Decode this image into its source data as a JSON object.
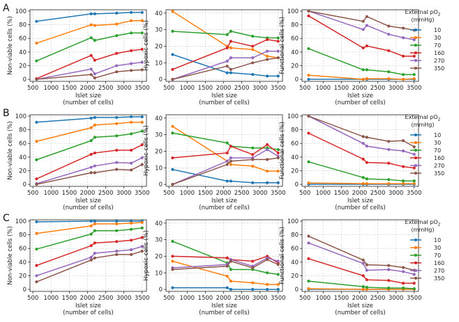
{
  "legend": {
    "title_line1": "External pO",
    "title_sub": "2",
    "title_line2": "(mmHg)",
    "entries": [
      "10",
      "30",
      "70",
      "160",
      "270",
      "350"
    ]
  },
  "colors": {
    "10": "#1f77b4",
    "30": "#ff7f0e",
    "70": "#2ca02c",
    "160": "#d62728",
    "270": "#9467bd",
    "350": "#8c564b"
  },
  "axes_common": {
    "xlabel_line1": "Islet size",
    "xlabel_line2": "(number of cells)",
    "xticks": [
      500,
      1000,
      1500,
      2000,
      2500,
      3000,
      3500
    ],
    "xlim": [
      420,
      3620
    ]
  },
  "rows": [
    {
      "letter": "A"
    },
    {
      "letter": "B"
    },
    {
      "letter": "C"
    }
  ],
  "chart_data": [
    {
      "panel": "A-nonviable",
      "type": "line",
      "ylabel": "Non-viable cells (%)",
      "ylim": [
        -3,
        102
      ],
      "yticks": [
        0,
        20,
        40,
        60,
        80,
        100
      ],
      "x": [
        600,
        2100,
        2200,
        2800,
        3200,
        3500
      ],
      "series": [
        {
          "name": "10",
          "values": [
            85,
            96,
            96,
            97,
            98,
            98
          ]
        },
        {
          "name": "30",
          "values": [
            53,
            80,
            79,
            81,
            86,
            86
          ]
        },
        {
          "name": "70",
          "values": [
            27,
            61,
            57,
            64,
            68,
            68
          ]
        },
        {
          "name": "160",
          "values": [
            1,
            35,
            28,
            38,
            42,
            44
          ]
        },
        {
          "name": "270",
          "values": [
            0,
            15,
            8,
            20,
            23,
            25
          ]
        },
        {
          "name": "350",
          "values": [
            0,
            7,
            2,
            11,
            13,
            14
          ]
        }
      ]
    },
    {
      "panel": "A-hypoxic",
      "type": "line",
      "ylabel": "Hypoxic cells (%)",
      "ylim": [
        -1.2,
        42
      ],
      "yticks": [
        0,
        10,
        20,
        30,
        40
      ],
      "x": [
        600,
        2100,
        2200,
        2800,
        3200,
        3500
      ],
      "series": [
        {
          "name": "10",
          "values": [
            15,
            4,
            4,
            3,
            2,
            2
          ]
        },
        {
          "name": "30",
          "values": [
            41,
            20,
            19,
            18,
            14,
            13
          ]
        },
        {
          "name": "70",
          "values": [
            29,
            27,
            29,
            26,
            25,
            25
          ]
        },
        {
          "name": "160",
          "values": [
            6,
            19,
            23,
            20,
            24,
            23
          ]
        },
        {
          "name": "270",
          "values": [
            0,
            11,
            13,
            13,
            17,
            17
          ]
        },
        {
          "name": "350",
          "values": [
            0,
            8,
            6,
            10,
            12,
            13
          ]
        }
      ]
    },
    {
      "panel": "A-functional",
      "type": "line",
      "ylabel": "Functional cells (%)",
      "ylim": [
        -3,
        102
      ],
      "yticks": [
        0,
        20,
        40,
        60,
        80,
        100
      ],
      "x": [
        600,
        2100,
        2200,
        2800,
        3200,
        3500
      ],
      "series": [
        {
          "name": "10",
          "values": [
            0,
            0,
            0,
            0,
            0,
            0
          ]
        },
        {
          "name": "30",
          "values": [
            6,
            0,
            1,
            1,
            0,
            1
          ]
        },
        {
          "name": "70",
          "values": [
            45,
            14,
            14,
            11,
            7,
            7
          ]
        },
        {
          "name": "160",
          "values": [
            93,
            46,
            49,
            42,
            34,
            34
          ]
        },
        {
          "name": "270",
          "values": [
            100,
            73,
            79,
            66,
            61,
            58
          ]
        },
        {
          "name": "350",
          "values": [
            100,
            85,
            92,
            78,
            75,
            72
          ]
        }
      ]
    },
    {
      "panel": "B-nonviable",
      "type": "line",
      "ylabel": "Non-viable cells (%)",
      "ylim": [
        -3,
        102
      ],
      "yticks": [
        0,
        20,
        40,
        60,
        80,
        100
      ],
      "x": [
        600,
        2100,
        2200,
        2800,
        3200,
        3500
      ],
      "series": [
        {
          "name": "10",
          "values": [
            91,
            97,
            98,
            98,
            99,
            99
          ]
        },
        {
          "name": "30",
          "values": [
            63,
            83,
            87,
            89,
            91,
            91
          ]
        },
        {
          "name": "70",
          "values": [
            36,
            64,
            69,
            71,
            74,
            78
          ]
        },
        {
          "name": "160",
          "values": [
            8,
            44,
            46,
            50,
            50,
            58
          ]
        },
        {
          "name": "270",
          "values": [
            1,
            25,
            27,
            32,
            31,
            39
          ]
        },
        {
          "name": "350",
          "values": [
            0,
            17,
            17,
            22,
            21,
            29
          ]
        }
      ]
    },
    {
      "panel": "B-hypoxic",
      "type": "line",
      "ylabel": "Hypoxic cells (%)",
      "ylim": [
        -1.2,
        42
      ],
      "yticks": [
        0,
        10,
        20,
        30,
        40
      ],
      "x": [
        600,
        2100,
        2200,
        2800,
        3200,
        3500
      ],
      "series": [
        {
          "name": "10",
          "values": [
            9,
            2,
            2,
            1,
            1,
            1
          ]
        },
        {
          "name": "30",
          "values": [
            35,
            14,
            12,
            11,
            8,
            8
          ]
        },
        {
          "name": "70",
          "values": [
            31,
            25,
            23,
            22,
            22,
            21
          ]
        },
        {
          "name": "160",
          "values": [
            16,
            19,
            23,
            18,
            24,
            19
          ]
        },
        {
          "name": "270",
          "values": [
            0,
            14,
            16,
            16,
            21,
            17
          ]
        },
        {
          "name": "350",
          "values": [
            0,
            12,
            14,
            15,
            15,
            16
          ]
        }
      ]
    },
    {
      "panel": "B-functional",
      "type": "line",
      "ylabel": "Functional cells (%)",
      "ylim": [
        -3,
        102
      ],
      "yticks": [
        0,
        20,
        40,
        60,
        80,
        100
      ],
      "x": [
        600,
        2100,
        2200,
        2800,
        3200,
        3500
      ],
      "series": [
        {
          "name": "10",
          "values": [
            0,
            0,
            0,
            0,
            0,
            0
          ]
        },
        {
          "name": "30",
          "values": [
            2,
            1,
            1,
            1,
            1,
            1
          ]
        },
        {
          "name": "70",
          "values": [
            33,
            10,
            8,
            7,
            5,
            5
          ]
        },
        {
          "name": "160",
          "values": [
            75,
            37,
            32,
            31,
            26,
            24
          ]
        },
        {
          "name": "270",
          "values": [
            100,
            60,
            56,
            51,
            49,
            44
          ]
        },
        {
          "name": "350",
          "values": [
            100,
            70,
            69,
            63,
            64,
            55
          ]
        }
      ]
    },
    {
      "panel": "C-nonviable",
      "type": "line",
      "ylabel": "Non-viable cells (%)",
      "ylim": [
        -3,
        102
      ],
      "yticks": [
        0,
        20,
        40,
        60,
        80,
        100
      ],
      "x": [
        600,
        2100,
        2200,
        2800,
        3200,
        3500
      ],
      "series": [
        {
          "name": "10",
          "values": [
            99,
            100,
            100,
            100,
            100,
            100
          ]
        },
        {
          "name": "30",
          "values": [
            82,
            93,
            96,
            96,
            97,
            98
          ]
        },
        {
          "name": "70",
          "values": [
            59,
            81,
            86,
            86,
            88,
            90
          ]
        },
        {
          "name": "160",
          "values": [
            35,
            64,
            68,
            70,
            72,
            76
          ]
        },
        {
          "name": "270",
          "values": [
            20,
            47,
            53,
            56,
            58,
            63
          ]
        },
        {
          "name": "350",
          "values": [
            11,
            43,
            46,
            51,
            51,
            56
          ]
        }
      ]
    },
    {
      "panel": "C-hypoxic",
      "type": "line",
      "ylabel": "Hypoxic cells (%)",
      "ylim": [
        -1.2,
        42
      ],
      "yticks": [
        0,
        10,
        20,
        30,
        40
      ],
      "x": [
        600,
        2100,
        2200,
        2800,
        3200,
        3500
      ],
      "series": [
        {
          "name": "10",
          "values": [
            1,
            1,
            0,
            0,
            0,
            0
          ]
        },
        {
          "name": "30",
          "values": [
            17,
            8,
            5,
            4,
            3,
            3
          ]
        },
        {
          "name": "70",
          "values": [
            29,
            16,
            12,
            12,
            10,
            9
          ]
        },
        {
          "name": "160",
          "values": [
            20,
            19,
            18,
            17,
            20,
            16
          ]
        },
        {
          "name": "270",
          "values": [
            13,
            15,
            18,
            14,
            19,
            17
          ]
        },
        {
          "name": "350",
          "values": [
            12,
            14,
            17,
            13,
            18,
            15
          ]
        }
      ]
    },
    {
      "panel": "C-functional",
      "type": "line",
      "ylabel": "Functional cells (%)",
      "ylim": [
        -3,
        102
      ],
      "yticks": [
        0,
        20,
        40,
        60,
        80,
        100
      ],
      "x": [
        600,
        2100,
        2200,
        2800,
        3200,
        3500
      ],
      "series": [
        {
          "name": "10",
          "values": [
            0,
            0,
            0,
            0,
            0,
            0
          ]
        },
        {
          "name": "30",
          "values": [
            1,
            0,
            0,
            0,
            0,
            0
          ]
        },
        {
          "name": "70",
          "values": [
            12,
            4,
            3,
            2,
            2,
            1
          ]
        },
        {
          "name": "160",
          "values": [
            45,
            20,
            14,
            13,
            9,
            9
          ]
        },
        {
          "name": "270",
          "values": [
            68,
            38,
            28,
            29,
            26,
            22
          ]
        },
        {
          "name": "350",
          "values": [
            78,
            43,
            36,
            35,
            32,
            28
          ]
        }
      ]
    }
  ]
}
